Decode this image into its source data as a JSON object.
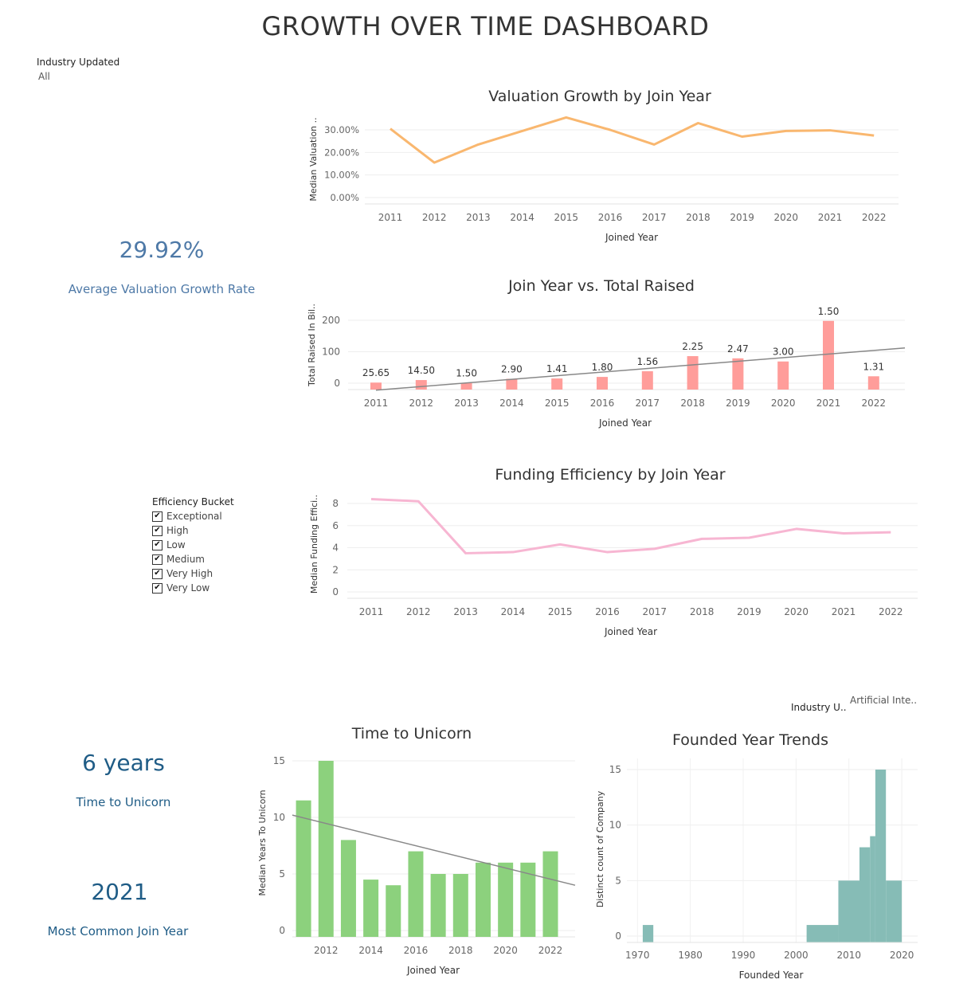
{
  "dashboard": {
    "title": "GROWTH OVER TIME DASHBOARD",
    "filter_industry": {
      "label": "Industry Updated",
      "value": "All"
    },
    "filter_industry2": {
      "label": "Industry U..",
      "value": "Artificial Inte.."
    },
    "kpi_growth": {
      "value": "29.92%",
      "label": "Average Valuation Growth Rate",
      "color": "#4e79a7"
    },
    "kpi_unicorn": {
      "value": "6 years",
      "label": "Time to Unicorn",
      "color": "#1f5c86"
    },
    "kpi_join": {
      "value": "2021",
      "label": "Most Common Join Year",
      "color": "#1f5c86"
    },
    "efficiency_legend": {
      "title": "Efficiency Bucket",
      "items": [
        "Exceptional",
        "High",
        "Low",
        "Medium",
        "Very High",
        "Very Low"
      ],
      "checkmark": "✔"
    }
  },
  "chart_data": [
    {
      "id": "valuation",
      "type": "line",
      "title": "Valuation Growth by Join Year",
      "xlabel": "Joined Year",
      "ylabel": "Median Valuation ..",
      "color": "#f9b76f",
      "x": [
        "2011",
        "2012",
        "2013",
        "2014",
        "2015",
        "2016",
        "2017",
        "2018",
        "2019",
        "2020",
        "2021",
        "2022"
      ],
      "values": [
        30.5,
        15.5,
        23.5,
        29.5,
        35.5,
        30.0,
        23.5,
        33.0,
        27.0,
        29.5,
        29.8,
        27.5
      ],
      "yticks": [
        "30.00%",
        "20.00%",
        "10.00%",
        "0.00%"
      ],
      "ytick_values": [
        30,
        20,
        10,
        0
      ],
      "ylim": [
        0,
        36
      ],
      "grid": true
    },
    {
      "id": "raised",
      "type": "bar",
      "title": "Join Year vs. Total Raised",
      "xlabel": "Joined Year",
      "ylabel": "Total Raised In Bil..",
      "color": "#ff9d9a",
      "trend_color": "#888888",
      "x": [
        "2011",
        "2012",
        "2013",
        "2014",
        "2015",
        "2016",
        "2017",
        "2018",
        "2019",
        "2020",
        "2021",
        "2022"
      ],
      "values": [
        2,
        10,
        1,
        14,
        15,
        20,
        38,
        86,
        79,
        69,
        198,
        22
      ],
      "labels": [
        "25.65",
        "14.50",
        "1.50",
        "2.90",
        "1.41",
        "1.80",
        "1.56",
        "2.25",
        "2.47",
        "3.00",
        "1.50",
        "1.31"
      ],
      "trend": [
        -22,
        112
      ],
      "yticks": [
        "200",
        "100",
        "0"
      ],
      "ytick_values": [
        200,
        100,
        0
      ],
      "ylim": [
        0,
        200
      ],
      "grid": true
    },
    {
      "id": "efficiency",
      "type": "line",
      "title": "Funding Efficiency by Join Year",
      "xlabel": "Joined Year",
      "ylabel": "Median Funding Effici..",
      "color": "#f7b6d2",
      "x": [
        "2011",
        "2012",
        "2013",
        "2014",
        "2015",
        "2016",
        "2017",
        "2018",
        "2019",
        "2020",
        "2021",
        "2022"
      ],
      "values": [
        8.4,
        8.2,
        3.5,
        3.6,
        4.3,
        3.6,
        3.9,
        4.8,
        4.9,
        5.7,
        5.3,
        5.4
      ],
      "yticks": [
        "8",
        "6",
        "4",
        "2",
        "0"
      ],
      "ytick_values": [
        8,
        6,
        4,
        2,
        0
      ],
      "ylim": [
        0,
        8
      ],
      "grid": true
    },
    {
      "id": "unicorn",
      "type": "bar",
      "title": "Time to Unicorn",
      "xlabel": "Joined Year",
      "ylabel": "Median Years To Unicorn",
      "color": "#8cd17d",
      "trend_color": "#888888",
      "x": [
        2011,
        2012,
        2013,
        2014,
        2015,
        2016,
        2017,
        2018,
        2019,
        2020,
        2021,
        2022
      ],
      "values": [
        11.5,
        15,
        8,
        4.5,
        4,
        7,
        5,
        5,
        6,
        6,
        6,
        7
      ],
      "xtick_labels": [
        "2012",
        "2014",
        "2016",
        "2018",
        "2020",
        "2022"
      ],
      "xtick_values": [
        2012,
        2014,
        2016,
        2018,
        2020,
        2022
      ],
      "trend": [
        10.2,
        4.0
      ],
      "yticks": [
        "15",
        "10",
        "5",
        "0"
      ],
      "ytick_values": [
        15,
        10,
        5,
        0
      ],
      "ylim": [
        0,
        15
      ],
      "grid": true
    },
    {
      "id": "founded",
      "type": "area",
      "title": "Founded Year Trends",
      "xlabel": "Founded Year",
      "ylabel": "Distinct count of Company",
      "color": "#86bcb6",
      "steps": [
        [
          1971,
          1973,
          1
        ],
        [
          2002,
          2008,
          1
        ],
        [
          2008,
          2012,
          5
        ],
        [
          2012,
          2014,
          8
        ],
        [
          2014,
          2015,
          9
        ],
        [
          2015,
          2017,
          15
        ],
        [
          2017,
          2020,
          5
        ]
      ],
      "xtick_labels": [
        "1970",
        "1980",
        "1990",
        "2000",
        "2010",
        "2020"
      ],
      "xtick_values": [
        1970,
        1980,
        1990,
        2000,
        2010,
        2020
      ],
      "xlim": [
        1968,
        2023
      ],
      "yticks": [
        "15",
        "10",
        "5",
        "0"
      ],
      "ytick_values": [
        15,
        10,
        5,
        0
      ],
      "ylim": [
        0,
        15
      ],
      "grid": true
    }
  ]
}
